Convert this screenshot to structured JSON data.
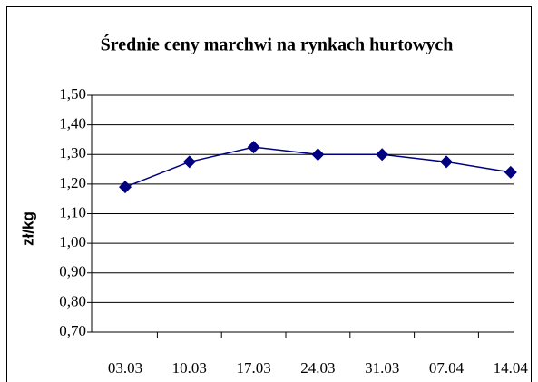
{
  "chart_data": {
    "type": "line",
    "title": "Średnie ceny marchwi na rynkach hurtowych",
    "y_label": "zł/kg",
    "categories": [
      "03.03",
      "10.03",
      "17.03",
      "24.03",
      "31.03",
      "07.04",
      "14.04"
    ],
    "series": [
      {
        "color": "#000080",
        "values": [
          1.19,
          1.275,
          1.325,
          1.3,
          1.3,
          1.275,
          1.24
        ]
      }
    ],
    "ylim": [
      0.7,
      1.5
    ],
    "yticks": [
      {
        "value": 0.7,
        "label": "0,70"
      },
      {
        "value": 0.8,
        "label": "0,80"
      },
      {
        "value": 0.9,
        "label": "0,90"
      },
      {
        "value": 1.0,
        "label": "1,00"
      },
      {
        "value": 1.1,
        "label": "1,10"
      },
      {
        "value": 1.2,
        "label": "1,20"
      },
      {
        "value": 1.3,
        "label": "1,30"
      },
      {
        "value": 1.4,
        "label": "1,40"
      },
      {
        "value": 1.5,
        "label": "1,50"
      }
    ],
    "grid": true
  }
}
